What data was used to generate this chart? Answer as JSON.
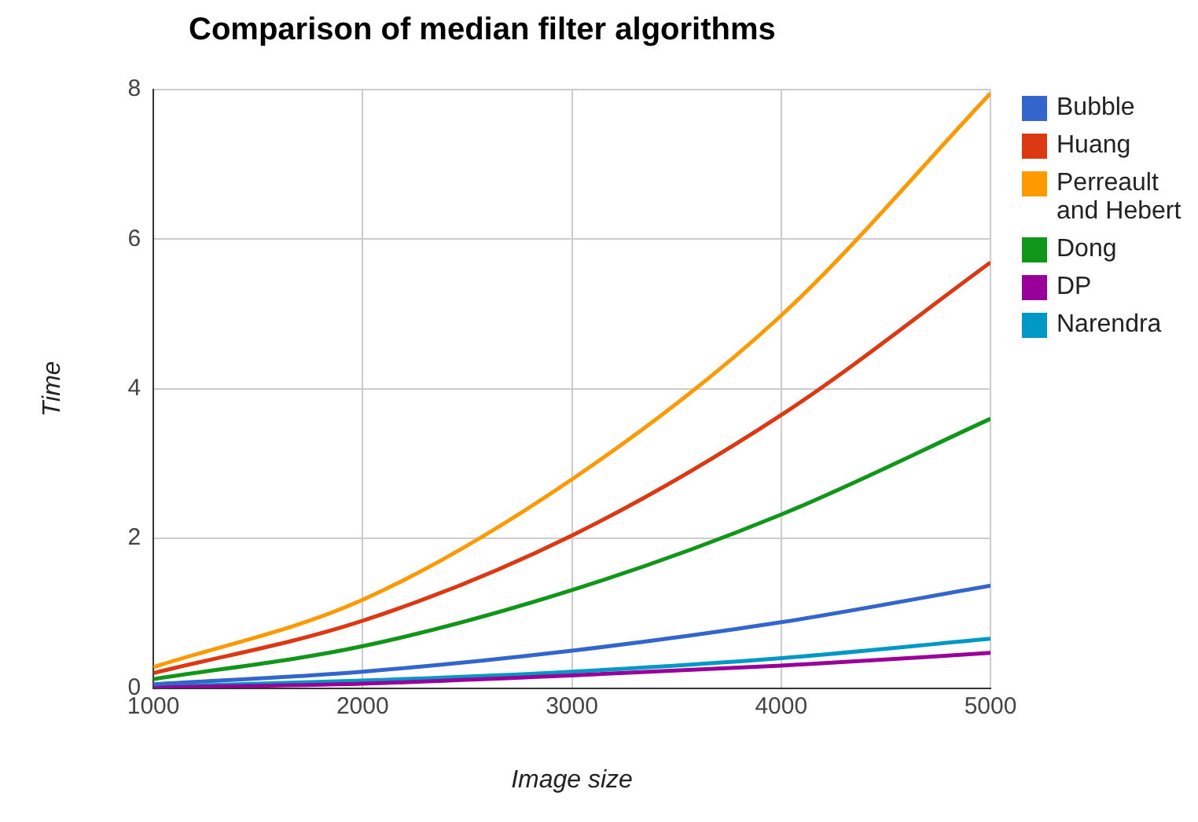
{
  "chart_data": {
    "type": "line",
    "title": "Comparison of median filter algorithms",
    "xlabel": "Image size",
    "ylabel": "Time",
    "x": [
      1000,
      2000,
      3000,
      4000,
      5000
    ],
    "series": [
      {
        "name": "Bubble",
        "color": "#3366cc",
        "values": [
          0.05,
          0.22,
          0.5,
          0.88,
          1.37
        ]
      },
      {
        "name": "Huang",
        "color": "#dc3912",
        "values": [
          0.2,
          0.9,
          2.04,
          3.65,
          5.69
        ]
      },
      {
        "name": "Perreault and Hebert",
        "color": "#ff9900",
        "values": [
          0.28,
          1.18,
          2.79,
          4.98,
          7.95
        ]
      },
      {
        "name": "Dong",
        "color": "#109618",
        "values": [
          0.12,
          0.56,
          1.31,
          2.32,
          3.6
        ]
      },
      {
        "name": "DP",
        "color": "#990099",
        "values": [
          0.01,
          0.06,
          0.17,
          0.3,
          0.47
        ]
      },
      {
        "name": "Narendra",
        "color": "#0099c6",
        "values": [
          0.02,
          0.1,
          0.22,
          0.4,
          0.66
        ]
      }
    ],
    "xlim": [
      1000,
      5000
    ],
    "xticks": [
      1000,
      2000,
      3000,
      4000,
      5000
    ],
    "ylim": [
      0,
      8
    ],
    "yticks": [
      0,
      2,
      4,
      6,
      8
    ],
    "grid": true,
    "legend": "right",
    "marker": "none",
    "line_style": "solid"
  }
}
